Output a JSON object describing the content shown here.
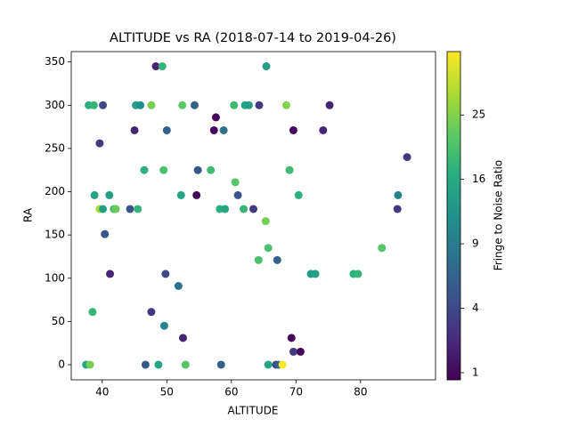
{
  "chart_data": {
    "type": "scatter",
    "title": "ALTITUDE vs RA (2018-07-14 to 2019-04-26)",
    "xlabel": "ALTITUDE",
    "ylabel": "RA",
    "x": [
      48.3,
      49.3,
      65.4,
      37.9,
      38.7,
      40.1,
      45.2,
      45.9,
      47.6,
      52.4,
      54.3,
      60.4,
      62.1,
      62.7,
      64.3,
      68.5,
      75.2,
      45.0,
      50.0,
      57.3,
      58.8,
      69.6,
      74.2,
      57.6,
      39.6,
      87.2,
      46.5,
      49.5,
      54.8,
      56.8,
      69.0,
      60.6,
      38.8,
      41.1,
      52.2,
      54.6,
      61.0,
      70.4,
      85.8,
      39.6,
      40.1,
      41.8,
      42.1,
      44.3,
      45.5,
      58.2,
      59.0,
      61.9,
      63.4,
      85.7,
      40.4,
      65.3,
      65.7,
      83.3,
      41.2,
      49.8,
      67.1,
      64.2,
      72.3,
      73.0,
      78.9,
      79.6,
      51.8,
      38.5,
      47.6,
      49.6,
      52.5,
      69.3,
      69.6,
      70.7,
      37.5,
      38.1,
      46.7,
      48.7,
      52.9,
      58.4,
      65.7,
      66.9,
      67.3,
      67.9
    ],
    "values": [
      345,
      345,
      345,
      300,
      300,
      300,
      300,
      300,
      300,
      300,
      300,
      300,
      300,
      300,
      300,
      300,
      300,
      271,
      271,
      271,
      271,
      271,
      271,
      286,
      256,
      240,
      225,
      225,
      225,
      225,
      225,
      211,
      196,
      196,
      196,
      196,
      196,
      196,
      196,
      180,
      180,
      180,
      180,
      180,
      180,
      180,
      180,
      180,
      180,
      180,
      151,
      166,
      135,
      135,
      105,
      105,
      121,
      121,
      105,
      105,
      105,
      105,
      91,
      61,
      61,
      45,
      31,
      31,
      15,
      15,
      0,
      0,
      0,
      0,
      0,
      0,
      0,
      0,
      0,
      0
    ],
    "color_values": [
      2,
      18,
      14,
      17,
      18,
      4,
      14,
      12,
      24,
      22,
      6,
      19,
      15,
      14,
      3,
      25,
      2,
      2,
      6,
      1,
      8,
      1,
      2,
      1,
      3,
      3,
      17,
      20,
      5,
      19,
      19,
      21,
      15,
      14,
      15,
      1,
      5,
      17,
      10,
      28,
      14,
      19,
      23,
      5,
      18,
      17,
      15,
      18,
      3,
      3,
      5,
      24,
      20,
      21,
      2,
      4,
      6,
      20,
      13,
      14,
      17,
      18,
      8,
      18,
      3,
      10,
      2,
      1,
      3,
      1,
      15,
      24,
      5,
      15,
      21,
      6,
      15,
      4,
      6,
      36
    ],
    "colormap": "viridis",
    "colorbar": {
      "label": "Fringe to Noise Ratio",
      "scale": "sqrt",
      "lim": [
        0.79,
        35.8
      ],
      "ticks": [
        1,
        4,
        9,
        16,
        25
      ]
    },
    "xlim": [
      35.2,
      91.6
    ],
    "ylim": [
      -17.5,
      362
    ],
    "xticks": [
      40,
      50,
      60,
      70,
      80
    ],
    "yticks": [
      0,
      50,
      100,
      150,
      200,
      250,
      300,
      350
    ]
  }
}
